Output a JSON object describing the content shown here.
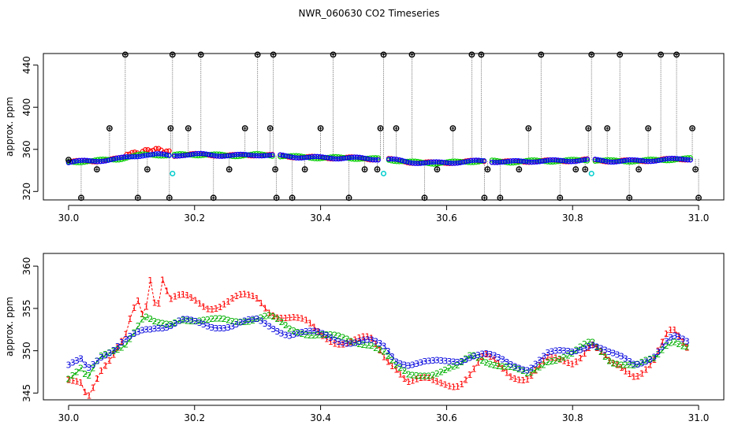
{
  "figure": {
    "title": "NWR_060630  CO2 Timeseries",
    "background": "#ffffff"
  },
  "chart_data": [
    {
      "type": "scatter",
      "panel": "top",
      "title": "",
      "xlabel": "",
      "ylabel": "approx. ppm",
      "xlim": [
        29.96,
        31.04
      ],
      "ylim": [
        312,
        451
      ],
      "xticks": [
        30.0,
        30.2,
        30.4,
        30.6,
        30.8,
        31.0
      ],
      "xtick_labels": [
        "30.0",
        "30.2",
        "30.4",
        "30.6",
        "30.8",
        "31.0"
      ],
      "yticks": [
        320,
        360,
        400,
        440
      ],
      "ytick_labels": [
        "320",
        "360",
        "400",
        "440"
      ],
      "grid": false,
      "legend": "none",
      "baseline": {
        "series_colors": [
          "#ff0000",
          "#00cc00",
          "#0000ff"
        ],
        "x": [
          30.0,
          30.04,
          30.08,
          30.1,
          30.12,
          30.14,
          30.16,
          30.18,
          30.22,
          30.26,
          30.3,
          30.33,
          30.36,
          30.4,
          30.44,
          30.48,
          30.5,
          30.54,
          30.58,
          30.62,
          30.66,
          30.7,
          30.74,
          30.78,
          30.82,
          30.86,
          30.9,
          30.94,
          30.98
        ],
        "y": [
          348,
          349,
          351,
          353,
          355,
          355,
          354,
          355,
          355,
          354,
          355,
          354,
          353,
          352,
          352,
          351,
          351,
          348,
          347,
          348,
          349,
          348,
          349,
          349,
          350,
          349,
          349,
          350,
          351
        ]
      },
      "spikes": {
        "color": "#000000",
        "marker": "circle-plus",
        "x": [
          30.0,
          30.02,
          30.045,
          30.065,
          30.09,
          30.11,
          30.125,
          30.16,
          30.162,
          30.165,
          30.19,
          30.21,
          30.23,
          30.255,
          30.28,
          30.3,
          30.32,
          30.325,
          30.328,
          30.33,
          30.355,
          30.375,
          30.4,
          30.42,
          30.445,
          30.47,
          30.49,
          30.495,
          30.5,
          30.52,
          30.545,
          30.565,
          30.585,
          30.61,
          30.64,
          30.655,
          30.66,
          30.665,
          30.685,
          30.715,
          30.73,
          30.75,
          30.78,
          30.805,
          30.82,
          30.825,
          30.83,
          30.855,
          30.875,
          30.89,
          30.905,
          30.92,
          30.94,
          30.965,
          30.99,
          30.995,
          31.0
        ],
        "y": [
          350,
          314,
          341,
          380,
          450,
          314,
          341,
          314,
          380,
          450,
          380,
          450,
          314,
          341,
          380,
          450,
          380,
          450,
          341,
          314,
          314,
          341,
          380,
          450,
          314,
          341,
          341,
          380,
          450,
          380,
          450,
          314,
          341,
          380,
          450,
          450,
          314,
          341,
          314,
          341,
          380,
          450,
          314,
          341,
          341,
          380,
          450,
          380,
          450,
          314,
          341,
          380,
          450,
          450,
          380,
          341,
          314
        ]
      },
      "cyan_points": {
        "color": "#00cccc",
        "x": [
          30.165,
          30.5,
          30.83
        ],
        "y": [
          337,
          337,
          337
        ]
      }
    },
    {
      "type": "scatter",
      "panel": "bottom",
      "title": "",
      "xlabel": "",
      "ylabel": "approx. ppm",
      "xlim": [
        29.96,
        31.04
      ],
      "ylim": [
        344.2,
        361.5
      ],
      "xticks": [
        30.0,
        30.2,
        30.4,
        30.6,
        30.8,
        31.0
      ],
      "xtick_labels": [
        "30.0",
        "30.2",
        "30.4",
        "30.6",
        "30.8",
        "31.0"
      ],
      "yticks": [
        345,
        350,
        355,
        360
      ],
      "ytick_labels": [
        "345",
        "350",
        "355",
        "360"
      ],
      "grid": false,
      "legend": "none",
      "series": [
        {
          "marker_label": "1",
          "color": "#ff0000",
          "x": [
            30.0,
            30.02,
            30.03,
            30.05,
            30.07,
            30.09,
            30.1,
            30.11,
            30.12,
            30.13,
            30.14,
            30.15,
            30.16,
            30.18,
            30.22,
            30.26,
            30.3,
            30.32,
            30.35,
            30.4,
            30.45,
            30.48,
            30.5,
            30.52,
            30.54,
            30.58,
            30.62,
            30.64,
            30.66,
            30.7,
            30.73,
            30.76,
            30.8,
            30.83,
            30.86,
            30.9,
            30.93,
            30.95,
            30.96,
            30.98
          ],
          "y": [
            346.0,
            346.5,
            345.0,
            348.0,
            349.0,
            351.0,
            354.0,
            356.0,
            354.0,
            359.0,
            355.0,
            359.0,
            356.0,
            356.0,
            355.5,
            356.0,
            356.0,
            355.0,
            354.0,
            352.0,
            351.0,
            351.0,
            349.5,
            348.5,
            346.5,
            346.0,
            346.5,
            347.5,
            349.0,
            347.5,
            347.0,
            348.5,
            349.0,
            351.0,
            348.0,
            347.5,
            349.0,
            351.5,
            352.0,
            350.5
          ]
        },
        {
          "marker_label": "2",
          "color": "#00b000",
          "x": [
            30.0,
            30.02,
            30.03,
            30.05,
            30.07,
            30.09,
            30.1,
            30.11,
            30.12,
            30.14,
            30.16,
            30.18,
            30.22,
            30.26,
            30.3,
            30.32,
            30.35,
            30.4,
            30.45,
            30.48,
            30.5,
            30.52,
            30.54,
            30.58,
            30.62,
            30.64,
            30.66,
            30.7,
            30.73,
            30.76,
            30.8,
            30.83,
            30.86,
            30.9,
            30.93,
            30.95,
            30.96,
            30.98
          ],
          "y": [
            347.0,
            348.0,
            346.5,
            349.0,
            350.0,
            351.0,
            352.0,
            353.0,
            354.0,
            353.0,
            353.0,
            354.0,
            353.5,
            353.5,
            354.0,
            354.0,
            352.5,
            352.0,
            351.0,
            351.0,
            350.0,
            348.0,
            347.0,
            347.5,
            348.0,
            349.5,
            349.0,
            348.0,
            347.0,
            349.0,
            349.5,
            351.0,
            349.0,
            348.0,
            349.0,
            351.0,
            351.5,
            350.5
          ]
        },
        {
          "marker_label": "3",
          "color": "#0000dd",
          "x": [
            30.0,
            30.02,
            30.03,
            30.05,
            30.07,
            30.09,
            30.1,
            30.11,
            30.12,
            30.14,
            30.16,
            30.18,
            30.22,
            30.26,
            30.3,
            30.32,
            30.35,
            30.4,
            30.45,
            30.48,
            30.5,
            30.52,
            30.54,
            30.58,
            30.62,
            30.64,
            30.66,
            30.7,
            30.73,
            30.76,
            30.8,
            30.83,
            30.86,
            30.9,
            30.93,
            30.95,
            30.96,
            30.98
          ],
          "y": [
            348.0,
            349.0,
            348.0,
            349.5,
            350.0,
            351.0,
            351.5,
            352.0,
            352.5,
            353.0,
            353.0,
            353.5,
            353.0,
            353.0,
            353.5,
            353.0,
            352.0,
            352.0,
            351.0,
            351.0,
            350.5,
            349.0,
            348.5,
            348.5,
            349.0,
            349.5,
            349.5,
            348.5,
            348.0,
            349.5,
            350.0,
            351.0,
            349.5,
            348.5,
            349.5,
            351.0,
            351.5,
            351.0
          ]
        }
      ]
    }
  ]
}
